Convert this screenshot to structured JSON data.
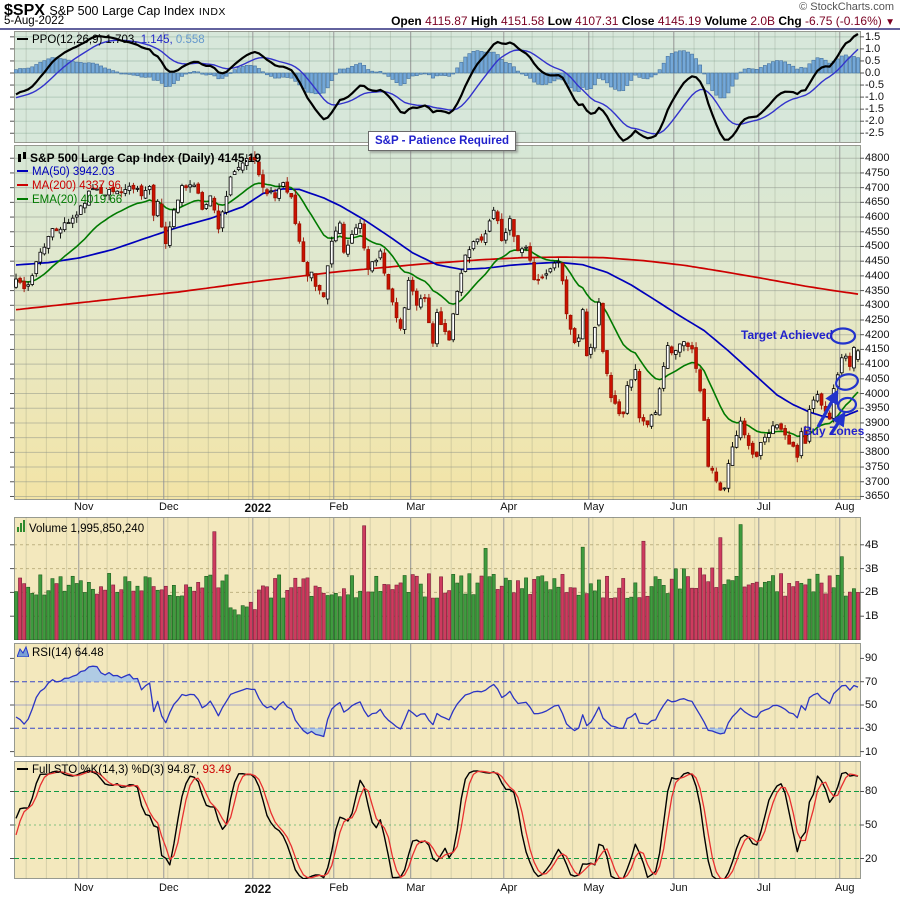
{
  "header": {
    "symbol": "$SPX",
    "name": "S&P 500 Large Cap Index",
    "exchange": "INDX",
    "date": "5-Aug-2022",
    "credit": "© StockCharts.com",
    "quote": {
      "open_label": "Open",
      "open": "4115.87",
      "high_label": "High",
      "high": "4151.58",
      "low_label": "Low",
      "low": "4107.31",
      "close_label": "Close",
      "close": "4145.19",
      "vol_label": "Volume",
      "vol": "2.0B",
      "chg_label": "Chg",
      "chg": "-6.75 (-0.16%)",
      "chg_dir": "▼"
    }
  },
  "panels": {
    "ppo": {
      "legend": "PPO(12,26,9) 1.703,",
      "v2": "1.145,",
      "v3": "0.558"
    },
    "main": {
      "title": "S&P 500 Large Cap Index (Daily) 4145.19",
      "ma50": "MA(50) 3942.03",
      "ma200": "MA(200) 4337.96",
      "ema20": "EMA(20) 4019.66"
    },
    "volume": {
      "legend": "Volume 1,995,850,240"
    },
    "rsi": {
      "legend": "RSI(14) 64.48"
    },
    "sto": {
      "legend": "Full STO %K(14,3) %D(3) 94.87,",
      "d_value": "93.49"
    }
  },
  "annotations": {
    "patience": "S&P - Patience Required",
    "target": "Target Achieved",
    "buy": "Buy Zones"
  },
  "colors": {
    "candle_down": "#cc1100",
    "candle_down_border": "#991100",
    "candle_up_fill": "#ffffff",
    "candle_up_border": "#000000",
    "ma50": "#0000bb",
    "ma200": "#cc0000",
    "ema20": "#007a00",
    "ppo_line": "#000000",
    "ppo_signal": "#3333cc",
    "hist_fill": "#74a8d8",
    "hist_border": "#44719e",
    "vol_up": "#3f9b3f",
    "vol_up_border": "#1d5c1d",
    "vol_down": "#ce3b5f",
    "vol_down_border": "#7a1f38",
    "rsi_line": "#2b35c4",
    "rsi_fill": "#a8c8e8",
    "sto_k": "#000000",
    "sto_d": "#e83030",
    "annotation": "#2233cc",
    "grid_major": "#8f948a",
    "month_line": "#9a9a9a"
  },
  "chart_data": {
    "type": "candlestick",
    "title": "S&P 500 Large Cap Index (Daily)",
    "symbol": "$SPX",
    "last_ohlc": [
      4115.87,
      4151.58,
      4107.31,
      4145.19
    ],
    "last_values": {
      "ma50": 3942.03,
      "ma200": 4337.96,
      "ema20": 4019.66,
      "ppo": [
        1.703,
        1.145,
        0.558
      ],
      "rsi": 64.48,
      "sto_k": 94.87,
      "sto_d": 93.49,
      "volume": 1995850240
    },
    "days": 209,
    "warmup": 24,
    "seed": 11,
    "x_axis_months": [
      "Nov",
      "Dec",
      "2022",
      "Feb",
      "Mar",
      "Apr",
      "May",
      "Jun",
      "Jul",
      "Aug"
    ],
    "month_boundaries": [
      16,
      37,
      59,
      79,
      98,
      121,
      142,
      163,
      184,
      204
    ],
    "price_range": [
      3638,
      4845
    ],
    "main_axis": [
      4800,
      4750,
      4700,
      4650,
      4600,
      4550,
      4500,
      4450,
      4400,
      4350,
      4300,
      4250,
      4200,
      4150,
      4100,
      4050,
      4000,
      3950,
      3900,
      3850,
      3800,
      3750,
      3700,
      3650
    ],
    "ppo_axis": [
      1.5,
      1.0,
      0.5,
      0.0,
      -0.5,
      -1.0,
      -1.5,
      -2.0,
      -2.5
    ],
    "ppo_range": [
      -2.9,
      1.75
    ],
    "volume_axis_b": [
      4,
      3,
      2,
      1
    ],
    "volume_range_b": [
      0,
      5.17
    ],
    "rsi_axis": [
      90,
      70,
      50,
      30,
      10
    ],
    "rsi_lines": [
      70,
      50,
      30
    ],
    "sto_axis": [
      80,
      50,
      20
    ],
    "sto_lines": [
      80,
      50,
      20
    ],
    "close_anchors": [
      [
        -24,
        4537
      ],
      [
        -16,
        4443
      ],
      [
        -9,
        4357
      ],
      [
        -5,
        4300
      ],
      [
        -2,
        4345
      ],
      [
        0,
        4391
      ],
      [
        2,
        4350
      ],
      [
        3,
        4364
      ],
      [
        6,
        4486
      ],
      [
        9,
        4550
      ],
      [
        12,
        4575
      ],
      [
        15,
        4605
      ],
      [
        18,
        4680
      ],
      [
        20,
        4698
      ],
      [
        22,
        4685
      ],
      [
        26,
        4688
      ],
      [
        29,
        4705
      ],
      [
        31,
        4683
      ],
      [
        33,
        4701
      ],
      [
        34,
        4595
      ],
      [
        35,
        4655
      ],
      [
        36,
        4567
      ],
      [
        37,
        4513
      ],
      [
        38,
        4577
      ],
      [
        41,
        4701
      ],
      [
        44,
        4712
      ],
      [
        46,
        4634
      ],
      [
        48,
        4669
      ],
      [
        49,
        4621
      ],
      [
        50,
        4568
      ],
      [
        53,
        4726
      ],
      [
        56,
        4786
      ],
      [
        59,
        4796
      ],
      [
        61,
        4701
      ],
      [
        64,
        4670
      ],
      [
        66,
        4726
      ],
      [
        68,
        4663
      ],
      [
        69,
        4577
      ],
      [
        72,
        4398
      ],
      [
        73,
        4410
      ],
      [
        74,
        4356
      ],
      [
        76,
        4327
      ],
      [
        77,
        4432
      ],
      [
        78,
        4516
      ],
      [
        80,
        4589
      ],
      [
        81,
        4477
      ],
      [
        82,
        4501
      ],
      [
        85,
        4587
      ],
      [
        87,
        4419
      ],
      [
        90,
        4475
      ],
      [
        92,
        4349
      ],
      [
        95,
        4226
      ],
      [
        96,
        4288
      ],
      [
        97,
        4385
      ],
      [
        99,
        4306
      ],
      [
        101,
        4329
      ],
      [
        103,
        4170
      ],
      [
        104,
        4278
      ],
      [
        106,
        4204
      ],
      [
        107,
        4173
      ],
      [
        109,
        4358
      ],
      [
        111,
        4463
      ],
      [
        113,
        4512
      ],
      [
        116,
        4543
      ],
      [
        118,
        4631
      ],
      [
        120,
        4530
      ],
      [
        122,
        4583
      ],
      [
        124,
        4481
      ],
      [
        126,
        4488
      ],
      [
        128,
        4397
      ],
      [
        130,
        4393
      ],
      [
        134,
        4459
      ],
      [
        135,
        4393
      ],
      [
        136,
        4272
      ],
      [
        138,
        4175
      ],
      [
        139,
        4184
      ],
      [
        140,
        4287
      ],
      [
        141,
        4132
      ],
      [
        142,
        4155
      ],
      [
        144,
        4300
      ],
      [
        145,
        4147
      ],
      [
        147,
        3991
      ],
      [
        149,
        3935
      ],
      [
        150,
        3930
      ],
      [
        151,
        4024
      ],
      [
        153,
        4089
      ],
      [
        154,
        3924
      ],
      [
        155,
        3900
      ],
      [
        156,
        3901
      ],
      [
        158,
        3941
      ],
      [
        161,
        4158
      ],
      [
        162,
        4132
      ],
      [
        164,
        4177
      ],
      [
        167,
        4160
      ],
      [
        169,
        4017
      ],
      [
        170,
        3901
      ],
      [
        171,
        3750
      ],
      [
        172,
        3735
      ],
      [
        174,
        3667
      ],
      [
        175,
        3675
      ],
      [
        176,
        3764
      ],
      [
        179,
        3912
      ],
      [
        181,
        3821
      ],
      [
        183,
        3785
      ],
      [
        184,
        3825
      ],
      [
        188,
        3902
      ],
      [
        190,
        3854
      ],
      [
        193,
        3790
      ],
      [
        194,
        3863
      ],
      [
        195,
        3831
      ],
      [
        196,
        3937
      ],
      [
        198,
        3999
      ],
      [
        199,
        3961
      ],
      [
        201,
        3921
      ],
      [
        202,
        4023
      ],
      [
        203,
        4072
      ],
      [
        204,
        4130
      ],
      [
        205,
        4118
      ],
      [
        206,
        4091
      ],
      [
        207,
        4155
      ],
      [
        208,
        4145.19
      ]
    ],
    "ma50_anchors": [
      [
        0,
        4437
      ],
      [
        8,
        4445
      ],
      [
        16,
        4462
      ],
      [
        24,
        4490
      ],
      [
        32,
        4528
      ],
      [
        40,
        4565
      ],
      [
        48,
        4595
      ],
      [
        56,
        4635
      ],
      [
        61,
        4680
      ],
      [
        66,
        4696
      ],
      [
        70,
        4694
      ],
      [
        76,
        4665
      ],
      [
        80,
        4639
      ],
      [
        86,
        4591
      ],
      [
        92,
        4536
      ],
      [
        98,
        4478
      ],
      [
        104,
        4438
      ],
      [
        110,
        4422
      ],
      [
        116,
        4426
      ],
      [
        122,
        4436
      ],
      [
        128,
        4442
      ],
      [
        134,
        4446
      ],
      [
        140,
        4438
      ],
      [
        146,
        4412
      ],
      [
        152,
        4369
      ],
      [
        158,
        4317
      ],
      [
        164,
        4264
      ],
      [
        170,
        4214
      ],
      [
        176,
        4145
      ],
      [
        182,
        4070
      ],
      [
        188,
        3995
      ],
      [
        192,
        3962
      ],
      [
        196,
        3937
      ],
      [
        199,
        3924
      ],
      [
        202,
        3917
      ],
      [
        205,
        3925
      ],
      [
        208,
        3942
      ]
    ],
    "ma200_anchors": [
      [
        0,
        4285
      ],
      [
        20,
        4315
      ],
      [
        40,
        4345
      ],
      [
        60,
        4382
      ],
      [
        80,
        4415
      ],
      [
        100,
        4440
      ],
      [
        115,
        4455
      ],
      [
        125,
        4462
      ],
      [
        135,
        4464
      ],
      [
        145,
        4462
      ],
      [
        155,
        4452
      ],
      [
        165,
        4436
      ],
      [
        175,
        4414
      ],
      [
        185,
        4390
      ],
      [
        195,
        4365
      ],
      [
        202,
        4350
      ],
      [
        208,
        4338
      ]
    ],
    "volume_spikes": [
      [
        49,
        4.55
      ],
      [
        86,
        4.8
      ],
      [
        116,
        3.85
      ],
      [
        140,
        3.9
      ],
      [
        155,
        4.15
      ],
      [
        174,
        4.3
      ],
      [
        179,
        4.85
      ],
      [
        204,
        3.5
      ]
    ]
  }
}
